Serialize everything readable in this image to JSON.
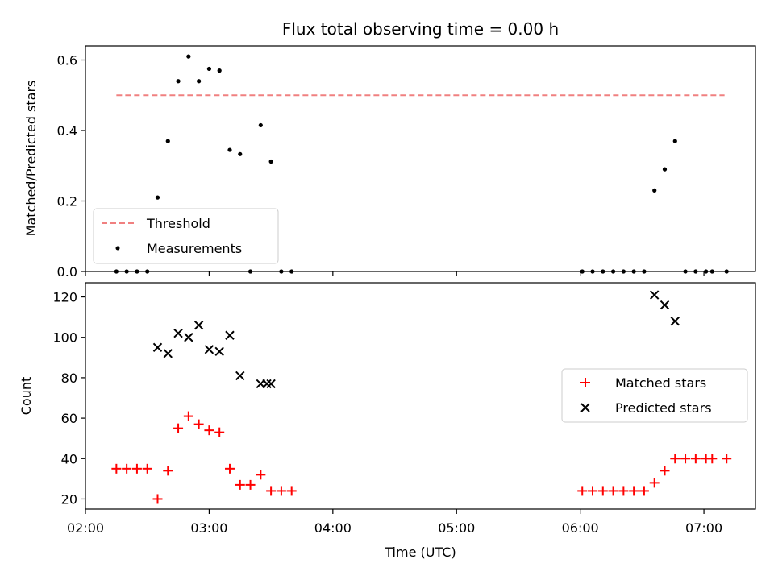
{
  "chart_data": [
    {
      "type": "scatter",
      "title": "Flux total observing time = 0.00 h",
      "xlabel": "",
      "ylabel": "Matched/Predicted stars",
      "xlim": [
        "02:00",
        "07:25"
      ],
      "ylim": [
        0,
        0.64
      ],
      "yticks": [
        "0.0",
        "0.2",
        "0.4",
        "0.6"
      ],
      "legend_position": "lower-left",
      "series": [
        {
          "name": "Threshold",
          "kind": "dashed-line",
          "color": "#f08080",
          "x": [
            "02:15",
            "07:10"
          ],
          "y": [
            0.5,
            0.5
          ]
        },
        {
          "name": "Measurements",
          "kind": "dot",
          "color": "#000000",
          "x": [
            "02:15",
            "02:20",
            "02:25",
            "02:30",
            "02:35",
            "02:40",
            "02:45",
            "02:50",
            "02:55",
            "03:00",
            "03:05",
            "03:10",
            "03:15",
            "03:20",
            "03:25",
            "03:30",
            "03:35",
            "03:40",
            "06:01",
            "06:06",
            "06:11",
            "06:16",
            "06:21",
            "06:26",
            "06:31",
            "06:36",
            "06:41",
            "06:46",
            "06:51",
            "06:56",
            "07:01",
            "07:04",
            "07:11"
          ],
          "y": [
            0,
            0,
            0,
            0,
            0.21,
            0.37,
            0.54,
            0.61,
            0.54,
            0.575,
            0.57,
            0.345,
            0.333,
            0,
            0.415,
            0.312,
            0,
            0,
            0,
            0,
            0,
            0,
            0,
            0,
            0,
            0.23,
            0.29,
            0.37,
            0,
            0,
            0,
            0,
            0
          ]
        }
      ]
    },
    {
      "type": "scatter",
      "title": "",
      "xlabel": "Time (UTC)",
      "ylabel": "Count",
      "xlim": [
        "02:00",
        "07:25"
      ],
      "ylim": [
        15,
        127
      ],
      "yticks": [
        "20",
        "40",
        "60",
        "80",
        "100",
        "120"
      ],
      "xticks": [
        "02:00",
        "03:00",
        "04:00",
        "05:00",
        "06:00",
        "07:00"
      ],
      "legend_position": "center-right",
      "series": [
        {
          "name": "Matched stars",
          "kind": "plus",
          "color": "#ff0000",
          "x": [
            "02:15",
            "02:20",
            "02:25",
            "02:30",
            "02:35",
            "02:40",
            "02:45",
            "02:50",
            "02:55",
            "03:00",
            "03:05",
            "03:10",
            "03:15",
            "03:20",
            "03:25",
            "03:30",
            "03:35",
            "03:40",
            "06:01",
            "06:06",
            "06:11",
            "06:16",
            "06:21",
            "06:26",
            "06:31",
            "06:36",
            "06:41",
            "06:46",
            "06:51",
            "06:56",
            "07:01",
            "07:04",
            "07:11"
          ],
          "y": [
            35,
            35,
            35,
            35,
            20,
            34,
            55,
            61,
            57,
            54,
            53,
            35,
            27,
            27,
            32,
            24,
            24,
            24,
            24,
            24,
            24,
            24,
            24,
            24,
            24,
            28,
            34,
            40,
            40,
            40,
            40,
            40,
            40
          ]
        },
        {
          "name": "Predicted stars",
          "kind": "cross",
          "color": "#000000",
          "x": [
            "02:35",
            "02:40",
            "02:45",
            "02:50",
            "02:55",
            "03:00",
            "03:05",
            "03:10",
            "03:15",
            "03:25",
            "03:28",
            "03:30",
            "06:36",
            "06:41",
            "06:46"
          ],
          "y": [
            95,
            92,
            102,
            100,
            106,
            94,
            93,
            101,
            81,
            77,
            77,
            77,
            121,
            116,
            108
          ]
        }
      ]
    }
  ]
}
